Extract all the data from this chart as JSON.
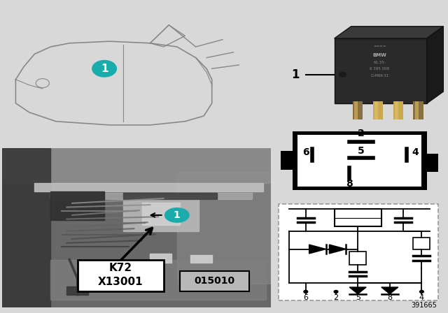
{
  "bg_color": "#d8d8d8",
  "white": "#ffffff",
  "black": "#000000",
  "teal": "#1aabab",
  "dark_gray": "#2a2a2a",
  "mid_gray": "#888888",
  "light_gray": "#cccccc",
  "ref_number": "391665",
  "diagram_number": "015010",
  "pin_labels_mid": [
    "6",
    "5",
    "4"
  ],
  "schematic_pins": [
    "6",
    "2",
    "5",
    "8",
    "4"
  ]
}
